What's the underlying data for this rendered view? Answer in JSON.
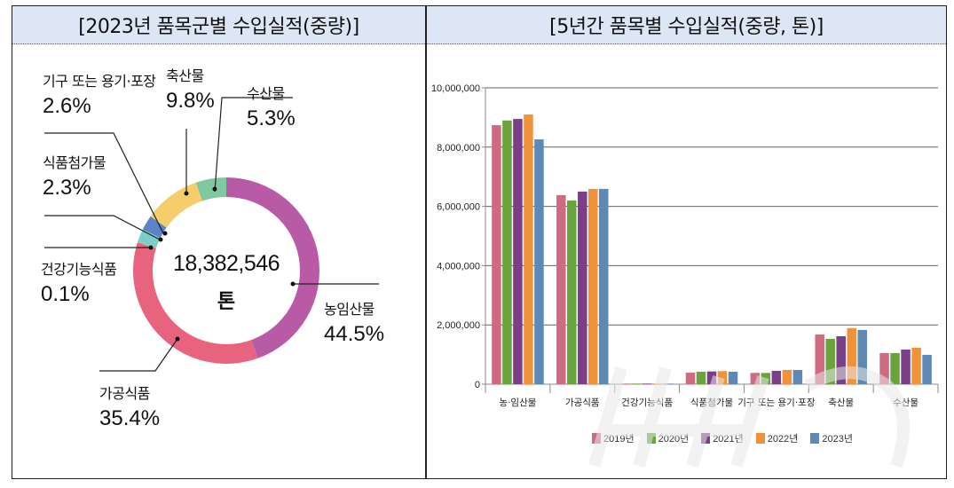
{
  "left_panel": {
    "title": "[2023년 품목군별 수입실적(중량)]",
    "center_value": "18,382,546",
    "center_unit": "톤"
  },
  "right_panel": {
    "title": "[5년간 품목별 수입실적(중량, 톤)]"
  },
  "chart_data": [
    {
      "type": "pie",
      "title": "2023년 품목군별 수입실적(중량)",
      "total": 18382546,
      "unit": "톤",
      "slices": [
        {
          "label": "농임산물",
          "pct": "44.5%",
          "value": 44.5,
          "color": "#b85aa6"
        },
        {
          "label": "가공식품",
          "pct": "35.4%",
          "value": 35.4,
          "color": "#e8647e"
        },
        {
          "label": "건강기능식품",
          "pct": "0.1%",
          "value": 0.1,
          "color": "#e8a08a"
        },
        {
          "label": "식품첨가물",
          "pct": "2.3%",
          "value": 2.3,
          "color": "#7ccfc8"
        },
        {
          "label": "기구 또는 용기·포장",
          "pct": "2.6%",
          "value": 2.6,
          "color": "#5b84c4"
        },
        {
          "label": "축산물",
          "pct": "9.8%",
          "value": 9.8,
          "color": "#f5cd6a"
        },
        {
          "label": "수산물",
          "pct": "5.3%",
          "value": 5.3,
          "color": "#7fc9a0"
        }
      ]
    },
    {
      "type": "bar",
      "title": "5년간 품목별 수입실적(중량, 톤)",
      "xlabel": "",
      "ylabel": "",
      "ylim": [
        0,
        10000000
      ],
      "yticks": [
        "0",
        "2,000,000",
        "4,000,000",
        "6,000,000",
        "8,000,000",
        "10,000,000"
      ],
      "grid": true,
      "legend_position": "bottom",
      "categories": [
        "농·임산물",
        "가공식품",
        "건강기능식품",
        "식품첨가물",
        "기구 또는 용기·포장",
        "축산물",
        "수산물"
      ],
      "series": [
        {
          "name": "2019년",
          "color": "#cf6b80",
          "values": [
            8740000,
            6380000,
            20000,
            390000,
            380000,
            1680000,
            1050000
          ]
        },
        {
          "name": "2020년",
          "color": "#6aa33c",
          "values": [
            8900000,
            6200000,
            20000,
            420000,
            380000,
            1530000,
            1050000
          ]
        },
        {
          "name": "2021년",
          "color": "#7a3f87",
          "values": [
            8950000,
            6500000,
            20000,
            430000,
            450000,
            1620000,
            1170000
          ]
        },
        {
          "name": "2022년",
          "color": "#ef923a",
          "values": [
            9100000,
            6590000,
            20000,
            440000,
            480000,
            1890000,
            1230000
          ]
        },
        {
          "name": "2023년",
          "color": "#5e88b5",
          "values": [
            8260000,
            6590000,
            20000,
            420000,
            480000,
            1830000,
            990000
          ]
        }
      ]
    }
  ]
}
